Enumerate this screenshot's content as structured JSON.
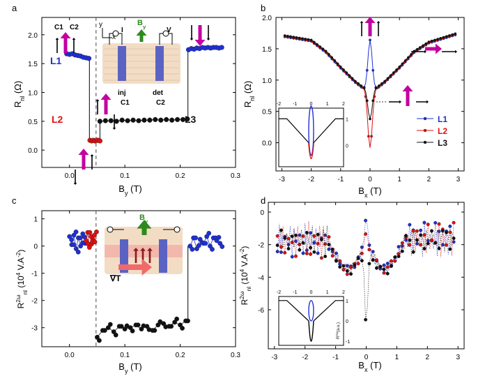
{
  "figure": {
    "colors": {
      "l1": "#1f2fd6",
      "l2": "#e01010",
      "l3": "#111111",
      "magenta": "#c400a0",
      "green": "#2f8a1e",
      "device_bg": "#f3dcc4",
      "electrode": "#5a63c4"
    }
  },
  "chart_data": [
    {
      "panel": "a",
      "type": "scatter",
      "xlabel": "B",
      "xlabel_sub": "y",
      "xlabel_unit": " (T)",
      "ylabel": "R",
      "ylabel_sub": "nl",
      "ylabel_unit": " (Ω)",
      "xlim": [
        -0.05,
        0.3
      ],
      "ylim": [
        -0.3,
        2.3
      ],
      "xticks": [
        0.0,
        0.1,
        0.2,
        0.3
      ],
      "xtick_labels": [
        "0.0",
        "0.1",
        "0.2",
        "0.3"
      ],
      "yticks": [
        0.0,
        0.5,
        1.0,
        1.5,
        2.0
      ],
      "ytick_labels": [
        "0.0",
        "0.5",
        "1.0",
        "1.5",
        "2.0"
      ],
      "dashed_x": 0.048,
      "series": [
        {
          "name": "L1",
          "color": "#1f2fd6",
          "x": [
            -0.005,
            0.0,
            0.005,
            0.01,
            0.015,
            0.02,
            0.025,
            0.03,
            0.035
          ],
          "y": [
            1.67,
            1.66,
            1.67,
            1.65,
            1.64,
            1.63,
            1.61,
            1.6,
            1.59
          ]
        },
        {
          "name": "L2",
          "color": "#e01010",
          "x": [
            0.037,
            0.04,
            0.043,
            0.046,
            0.049,
            0.052,
            0.055
          ],
          "y": [
            0.17,
            0.16,
            0.17,
            0.16,
            0.17,
            0.17,
            0.16
          ]
        },
        {
          "name": "L3",
          "color": "#111111",
          "x": [
            0.055,
            0.065,
            0.075,
            0.085,
            0.095,
            0.105,
            0.115,
            0.125,
            0.135,
            0.145,
            0.155,
            0.165,
            0.175,
            0.185,
            0.195,
            0.205,
            0.213
          ],
          "y": [
            0.5,
            0.51,
            0.51,
            0.5,
            0.52,
            0.51,
            0.52,
            0.51,
            0.52,
            0.52,
            0.53,
            0.52,
            0.53,
            0.52,
            0.53,
            0.53,
            0.54
          ]
        },
        {
          "name": "L1-high",
          "color": "#1f2fd6",
          "x": [
            0.215,
            0.22,
            0.225,
            0.23,
            0.235,
            0.24,
            0.245,
            0.25,
            0.255,
            0.26,
            0.265,
            0.27,
            0.275
          ],
          "y": [
            1.74,
            1.76,
            1.75,
            1.77,
            1.76,
            1.78,
            1.77,
            1.78,
            1.77,
            1.78,
            1.78,
            1.77,
            1.78
          ]
        }
      ],
      "steps": [
        {
          "x": 0.036,
          "y0": 1.59,
          "y1": 0.17
        },
        {
          "x": 0.055,
          "y0": 0.17,
          "y1": 0.5
        },
        {
          "x": 0.214,
          "y0": 0.54,
          "y1": 1.74
        }
      ],
      "labels": [
        "L1",
        "L2",
        "L3"
      ],
      "inset_text": {
        "c1": "C1",
        "c2": "C2",
        "x": "x",
        "y": "y",
        "i": "I",
        "v": "V",
        "by_main": "B",
        "by_sub": "y",
        "inj": "inj",
        "det": "det",
        "inj_c": "C1",
        "det_c": "C2"
      }
    },
    {
      "panel": "b",
      "type": "scatter",
      "xlabel": "B",
      "xlabel_sub": "x",
      "xlabel_unit": " (T)",
      "ylabel": "R",
      "ylabel_sub": "nl",
      "ylabel_unit": " (Ω)",
      "xlim": [
        -3.2,
        3.2
      ],
      "ylim": [
        -0.45,
        2.0
      ],
      "xticks": [
        -3,
        -2,
        -1,
        0,
        1,
        2,
        3
      ],
      "xtick_labels": [
        "-3",
        "-2",
        "-1",
        "0",
        "1",
        "2",
        "3"
      ],
      "yticks": [
        0.0,
        0.5,
        1.0,
        1.5,
        2.0
      ],
      "ytick_labels": [
        "0.0",
        "0.5",
        "1.0",
        "1.5",
        "2.0"
      ],
      "series_style": "curve",
      "series": [
        {
          "name": "L1",
          "color": "#1f2fd6",
          "shape": "peak",
          "base": 0.88,
          "center": 1.65,
          "width": 0.12
        },
        {
          "name": "L2",
          "color": "#e01010",
          "shape": "dip",
          "base": 0.88,
          "center": -0.08,
          "width": 0.13
        },
        {
          "name": "L3",
          "color": "#111111",
          "shape": "dip",
          "base": 0.88,
          "center": 0.37,
          "width": 0.13
        }
      ],
      "wings": [
        [
          -2.9,
          1.7
        ],
        [
          -2.0,
          1.63
        ],
        [
          -1.5,
          1.45
        ],
        [
          -1.0,
          1.2
        ],
        [
          -0.5,
          0.97
        ],
        [
          -0.25,
          0.88
        ],
        [
          0.25,
          0.88
        ],
        [
          0.5,
          0.97
        ],
        [
          1.0,
          1.2
        ],
        [
          1.5,
          1.45
        ],
        [
          2.0,
          1.6
        ],
        [
          2.9,
          1.73
        ]
      ],
      "legend": [
        "L1",
        "L2",
        "L3"
      ],
      "legend_position": "middle-right",
      "inset": {
        "xlim": [
          -2,
          2
        ],
        "ylim": [
          -0.8,
          1.4
        ],
        "xticks": [
          -2,
          -1,
          0,
          1,
          2
        ],
        "xtick_labels": [
          "-2",
          "-1",
          "0",
          "1",
          "2"
        ],
        "yticks": [
          0,
          1
        ],
        "ytick_labels": [
          "0",
          "1"
        ]
      }
    },
    {
      "panel": "c",
      "type": "scatter",
      "xlabel": "B",
      "xlabel_sub": "y",
      "xlabel_unit": " (T)",
      "ylabel_pre": "R",
      "ylabel_sup": "2ω",
      "ylabel_sub": "nl",
      "ylabel_unit": " (10",
      "ylabel_unit_sup": "4",
      "ylabel_unit_tail": " V.A",
      "ylabel_unit_tail_sup": "-2",
      "ylabel_close": ")",
      "xlim": [
        -0.05,
        0.3
      ],
      "ylim": [
        -3.7,
        1.3
      ],
      "xticks": [
        0.0,
        0.1,
        0.2,
        0.3
      ],
      "xtick_labels": [
        "0.0",
        "0.1",
        "0.2",
        "0.3"
      ],
      "yticks": [
        1,
        0,
        -1,
        -2,
        -3
      ],
      "ytick_labels": [
        "1",
        "0",
        "-1",
        "-2",
        "-3"
      ],
      "dashed_x": 0.048,
      "series": [
        {
          "name": "L1",
          "color": "#1f2fd6",
          "x": [
            0.0,
            0.004,
            0.008,
            0.012,
            0.016,
            0.02,
            0.024,
            0.028
          ],
          "y": [
            0.35,
            0.05,
            0.4,
            -0.1,
            0.3,
            0.0,
            0.45,
            0.1
          ]
        },
        {
          "name": "L2",
          "color": "#e01010",
          "x": [
            0.03,
            0.033,
            0.036,
            0.039,
            0.042,
            0.045
          ],
          "y": [
            0.2,
            0.5,
            -0.05,
            0.35,
            0.15,
            0.4
          ]
        },
        {
          "name": "L3",
          "color": "#111111",
          "x": [
            0.05,
            0.06,
            0.07,
            0.08,
            0.09,
            0.1,
            0.11,
            0.12,
            0.13,
            0.14,
            0.15,
            0.16,
            0.17,
            0.18,
            0.19,
            0.2,
            0.21
          ],
          "y": [
            -3.35,
            -3.1,
            -3.0,
            -3.15,
            -2.95,
            -3.05,
            -3.0,
            -2.9,
            -3.05,
            -2.95,
            -3.1,
            -2.9,
            -2.85,
            -2.95,
            -2.8,
            -2.9,
            -2.75
          ]
        },
        {
          "name": "L1-high",
          "color": "#1f2fd6",
          "x": [
            0.218,
            0.224,
            0.23,
            0.236,
            0.242,
            0.248,
            0.254,
            0.26,
            0.266,
            0.272
          ],
          "y": [
            0.0,
            0.3,
            -0.1,
            0.25,
            0.1,
            0.35,
            0.0,
            0.3,
            0.2,
            0.1
          ]
        }
      ],
      "inset_text": {
        "by_main": "B",
        "by_sub": "y",
        "grad": "∇T"
      }
    },
    {
      "panel": "d",
      "type": "scatter",
      "xlabel": "B",
      "xlabel_sub": "x",
      "xlabel_unit": " (T)",
      "ylabel_pre": "R",
      "ylabel_sup": "2ω",
      "ylabel_sub": "nl",
      "ylabel_unit": " (10",
      "ylabel_unit_sup": "4",
      "ylabel_unit_tail": " V.A",
      "ylabel_unit_tail_sup": "-2",
      "ylabel_close": ")",
      "xlim": [
        -3.2,
        3.2
      ],
      "ylim": [
        -8.4,
        0.6
      ],
      "xticks": [
        -3,
        -2,
        -1,
        0,
        1,
        2,
        3
      ],
      "xtick_labels": [
        "-3",
        "-2",
        "-1",
        "0",
        "1",
        "2",
        "3"
      ],
      "yticks": [
        0,
        -2,
        -4,
        -6
      ],
      "ytick_labels": [
        "0",
        "-2",
        "-4",
        "-6"
      ],
      "series_style": "noisy",
      "series": [
        {
          "name": "L1",
          "color": "#1f2fd6",
          "center": -0.4,
          "floor": -2.9
        },
        {
          "name": "L2",
          "color": "#e01010",
          "center": -1.3,
          "floor": -3.1
        },
        {
          "name": "L3",
          "color": "#111111",
          "center": -6.9,
          "floor": -3.4
        }
      ],
      "inset": {
        "xlim": [
          -2,
          2
        ],
        "ylim": [
          -1.2,
          1.2
        ],
        "xticks": [
          -2,
          -1,
          0,
          1,
          2
        ],
        "xtick_labels": [
          "-2",
          "-1",
          "0",
          "1",
          "2"
        ],
        "yticks": [
          1,
          0,
          -1
        ],
        "ytick_labels": [
          "1",
          "0",
          "-1"
        ],
        "ylabel": "R",
        "ylabel_sup": "2ω",
        "ylabel_tail": "(a.u.)"
      }
    }
  ]
}
